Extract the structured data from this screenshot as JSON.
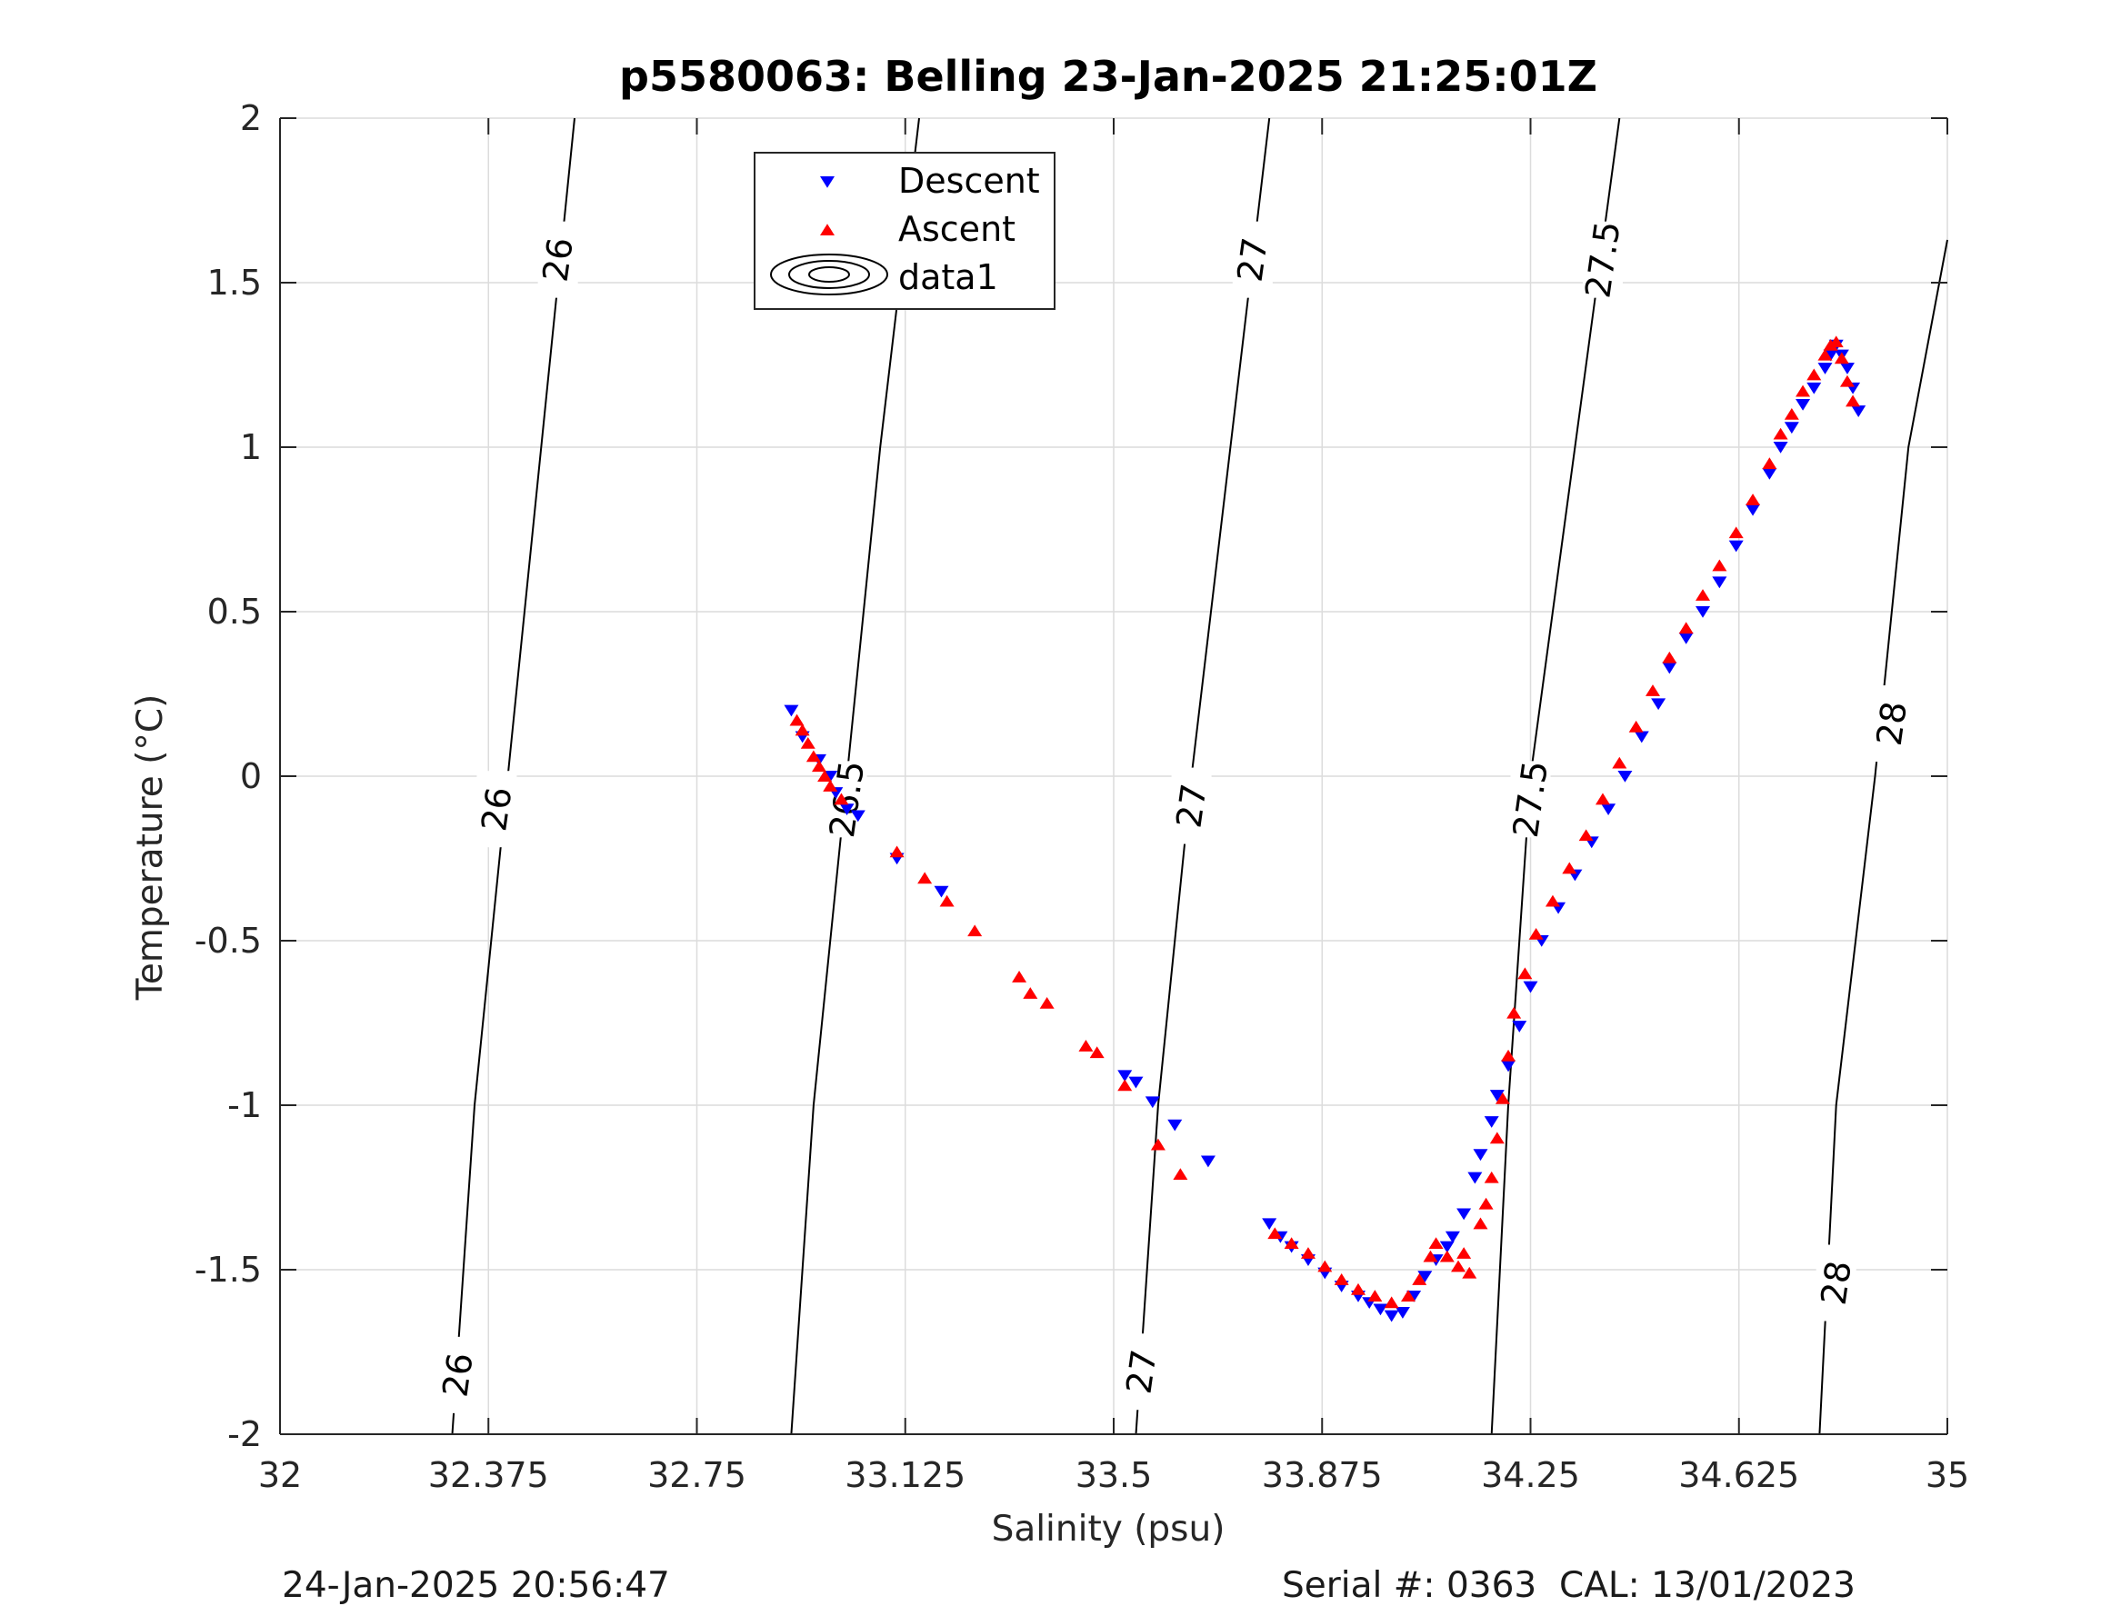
{
  "chart_data": {
    "type": "scatter",
    "title": "p5580063: Belling 23-Jan-2025 21:25:01Z",
    "xlabel": "Salinity (psu)",
    "ylabel": "Temperature (°C)",
    "xlim": [
      32,
      35
    ],
    "ylim": [
      -2,
      2
    ],
    "xticks": [
      "32",
      "32.375",
      "32.75",
      "33.125",
      "33.5",
      "33.875",
      "34.25",
      "34.625",
      "35"
    ],
    "yticks": [
      "-2",
      "-1.5",
      "-1",
      "-0.5",
      "0",
      "0.5",
      "1",
      "1.5",
      "2"
    ],
    "grid": true,
    "legend_position": "top-center",
    "legend": [
      "Descent",
      "Ascent",
      "data1"
    ],
    "colors": {
      "descent": "#0000ff",
      "ascent": "#ff0000",
      "contour": "#000000",
      "grid": "#dcdcdc"
    },
    "series": [
      {
        "name": "Descent",
        "marker": "triangle-down",
        "points": [
          [
            32.92,
            0.2
          ],
          [
            32.94,
            0.12
          ],
          [
            32.97,
            0.05
          ],
          [
            32.99,
            0.0
          ],
          [
            33.0,
            -0.05
          ],
          [
            33.02,
            -0.1
          ],
          [
            33.04,
            -0.12
          ],
          [
            33.11,
            -0.25
          ],
          [
            33.19,
            -0.35
          ],
          [
            33.52,
            -0.91
          ],
          [
            33.54,
            -0.93
          ],
          [
            33.57,
            -0.99
          ],
          [
            33.61,
            -1.06
          ],
          [
            33.67,
            -1.17
          ],
          [
            33.78,
            -1.36
          ],
          [
            33.8,
            -1.4
          ],
          [
            33.82,
            -1.43
          ],
          [
            33.85,
            -1.47
          ],
          [
            33.88,
            -1.51
          ],
          [
            33.91,
            -1.55
          ],
          [
            33.94,
            -1.58
          ],
          [
            33.96,
            -1.6
          ],
          [
            33.98,
            -1.62
          ],
          [
            34.0,
            -1.64
          ],
          [
            34.02,
            -1.63
          ],
          [
            34.04,
            -1.58
          ],
          [
            34.06,
            -1.52
          ],
          [
            34.08,
            -1.47
          ],
          [
            34.1,
            -1.43
          ],
          [
            34.11,
            -1.4
          ],
          [
            34.13,
            -1.33
          ],
          [
            34.15,
            -1.22
          ],
          [
            34.16,
            -1.15
          ],
          [
            34.18,
            -1.05
          ],
          [
            34.19,
            -0.97
          ],
          [
            34.21,
            -0.88
          ],
          [
            34.23,
            -0.76
          ],
          [
            34.25,
            -0.64
          ],
          [
            34.27,
            -0.5
          ],
          [
            34.3,
            -0.4
          ],
          [
            34.33,
            -0.3
          ],
          [
            34.36,
            -0.2
          ],
          [
            34.39,
            -0.1
          ],
          [
            34.42,
            0.0
          ],
          [
            34.45,
            0.12
          ],
          [
            34.48,
            0.22
          ],
          [
            34.5,
            0.33
          ],
          [
            34.53,
            0.42
          ],
          [
            34.56,
            0.5
          ],
          [
            34.59,
            0.59
          ],
          [
            34.62,
            0.7
          ],
          [
            34.65,
            0.81
          ],
          [
            34.68,
            0.92
          ],
          [
            34.7,
            1.0
          ],
          [
            34.72,
            1.06
          ],
          [
            34.74,
            1.13
          ],
          [
            34.76,
            1.18
          ],
          [
            34.78,
            1.24
          ],
          [
            34.79,
            1.28
          ],
          [
            34.8,
            1.31
          ],
          [
            34.81,
            1.28
          ],
          [
            34.82,
            1.24
          ],
          [
            34.83,
            1.18
          ],
          [
            34.84,
            1.11
          ]
        ]
      },
      {
        "name": "Ascent",
        "marker": "triangle-up",
        "points": [
          [
            32.93,
            0.17
          ],
          [
            32.94,
            0.14
          ],
          [
            32.95,
            0.1
          ],
          [
            32.96,
            0.06
          ],
          [
            32.97,
            0.03
          ],
          [
            32.98,
            0.0
          ],
          [
            32.99,
            -0.03
          ],
          [
            33.01,
            -0.07
          ],
          [
            33.11,
            -0.23
          ],
          [
            33.16,
            -0.31
          ],
          [
            33.2,
            -0.38
          ],
          [
            33.25,
            -0.47
          ],
          [
            33.33,
            -0.61
          ],
          [
            33.35,
            -0.66
          ],
          [
            33.38,
            -0.69
          ],
          [
            33.45,
            -0.82
          ],
          [
            33.47,
            -0.84
          ],
          [
            33.52,
            -0.94
          ],
          [
            33.58,
            -1.12
          ],
          [
            33.62,
            -1.21
          ],
          [
            33.79,
            -1.39
          ],
          [
            33.82,
            -1.42
          ],
          [
            33.85,
            -1.45
          ],
          [
            33.88,
            -1.49
          ],
          [
            33.91,
            -1.53
          ],
          [
            33.94,
            -1.56
          ],
          [
            33.97,
            -1.58
          ],
          [
            34.0,
            -1.6
          ],
          [
            34.03,
            -1.58
          ],
          [
            34.05,
            -1.53
          ],
          [
            34.07,
            -1.46
          ],
          [
            34.08,
            -1.42
          ],
          [
            34.1,
            -1.46
          ],
          [
            34.12,
            -1.49
          ],
          [
            34.13,
            -1.45
          ],
          [
            34.14,
            -1.51
          ],
          [
            34.16,
            -1.36
          ],
          [
            34.17,
            -1.3
          ],
          [
            34.18,
            -1.22
          ],
          [
            34.19,
            -1.1
          ],
          [
            34.2,
            -0.98
          ],
          [
            34.21,
            -0.85
          ],
          [
            34.22,
            -0.72
          ],
          [
            34.24,
            -0.6
          ],
          [
            34.26,
            -0.48
          ],
          [
            34.29,
            -0.38
          ],
          [
            34.32,
            -0.28
          ],
          [
            34.35,
            -0.18
          ],
          [
            34.38,
            -0.07
          ],
          [
            34.41,
            0.04
          ],
          [
            34.44,
            0.15
          ],
          [
            34.47,
            0.26
          ],
          [
            34.5,
            0.36
          ],
          [
            34.53,
            0.45
          ],
          [
            34.56,
            0.55
          ],
          [
            34.59,
            0.64
          ],
          [
            34.62,
            0.74
          ],
          [
            34.65,
            0.84
          ],
          [
            34.68,
            0.95
          ],
          [
            34.7,
            1.04
          ],
          [
            34.72,
            1.1
          ],
          [
            34.74,
            1.17
          ],
          [
            34.76,
            1.22
          ],
          [
            34.78,
            1.28
          ],
          [
            34.79,
            1.31
          ],
          [
            34.8,
            1.32
          ],
          [
            34.81,
            1.27
          ],
          [
            34.82,
            1.2
          ],
          [
            34.83,
            1.14
          ]
        ]
      }
    ],
    "contours": [
      {
        "level": "26",
        "points": [
          [
            32.31,
            -2
          ],
          [
            32.35,
            -1
          ],
          [
            32.38,
            -0.5
          ],
          [
            32.41,
            0
          ],
          [
            32.47,
            1
          ],
          [
            32.53,
            2
          ]
        ],
        "labels": [
          {
            "text": "26",
            "x": 32.32,
            "y": -1.82
          },
          {
            "text": "26",
            "x": 32.39,
            "y": -0.1
          },
          {
            "text": "26",
            "x": 32.5,
            "y": 1.57
          }
        ]
      },
      {
        "level": "26.5",
        "points": [
          [
            32.92,
            -2
          ],
          [
            32.96,
            -1
          ],
          [
            33.02,
            0
          ],
          [
            33.08,
            1
          ],
          [
            33.15,
            2
          ]
        ],
        "labels": [
          {
            "text": "26.5",
            "x": 33.02,
            "y": -0.07
          },
          {
            "text": "26.5",
            "x": 33.12,
            "y": 1.57
          }
        ]
      },
      {
        "level": "27",
        "points": [
          [
            33.54,
            -2
          ],
          [
            33.58,
            -1
          ],
          [
            33.64,
            0
          ],
          [
            33.71,
            1
          ],
          [
            33.78,
            2
          ]
        ],
        "labels": [
          {
            "text": "27",
            "x": 33.55,
            "y": -1.81
          },
          {
            "text": "27",
            "x": 33.64,
            "y": -0.09
          },
          {
            "text": "27",
            "x": 33.75,
            "y": 1.57
          }
        ]
      },
      {
        "level": "27.5",
        "points": [
          [
            34.18,
            -2
          ],
          [
            34.21,
            -1
          ],
          [
            34.25,
            0
          ],
          [
            34.33,
            1
          ],
          [
            34.41,
            2
          ]
        ],
        "labels": [
          {
            "text": "27.5",
            "x": 34.25,
            "y": -0.07
          },
          {
            "text": "27.5",
            "x": 34.38,
            "y": 1.57
          }
        ]
      },
      {
        "level": "28",
        "points": [
          [
            34.77,
            -2
          ],
          [
            34.8,
            -1
          ],
          [
            34.87,
            0
          ],
          [
            34.93,
            1
          ],
          [
            35.0,
            1.63
          ]
        ],
        "labels": [
          {
            "text": "28",
            "x": 34.8,
            "y": -1.54
          },
          {
            "text": "28",
            "x": 34.9,
            "y": 0.16
          }
        ]
      }
    ]
  },
  "footer": {
    "left": "24-Jan-2025 20:56:47",
    "right": "Serial #: 0363  CAL: 13/01/2023"
  }
}
